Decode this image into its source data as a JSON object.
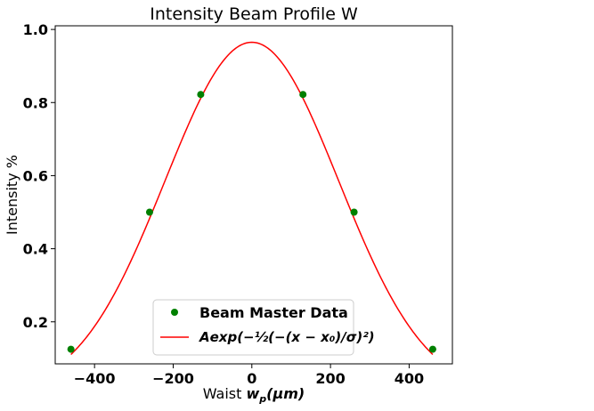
{
  "chart_data": {
    "type": "line",
    "title": "Intensity Beam Profile W",
    "xlabel_prefix": "Waist ",
    "xlabel_math": "w",
    "xlabel_sub": "p",
    "xlabel_unit": "(μm)",
    "ylabel": "Intensity %",
    "xlim": [
      -500,
      510
    ],
    "ylim": [
      0.085,
      1.01
    ],
    "xticks": [
      -400,
      -200,
      0,
      200,
      400
    ],
    "xtick_labels": [
      "−400",
      "−200",
      "0",
      "200",
      "400"
    ],
    "yticks": [
      0.2,
      0.4,
      0.6,
      0.8,
      1.0
    ],
    "ytick_labels": [
      "0.2",
      "0.4",
      "0.6",
      "0.8",
      "1.0"
    ],
    "grid": false,
    "legend_position": "lower center",
    "series": [
      {
        "name": "Beam Master Data",
        "kind": "scatter",
        "color": "#008000",
        "x": [
          -460,
          -260,
          -130,
          130,
          260,
          460
        ],
        "y": [
          0.125,
          0.5,
          0.822,
          0.822,
          0.5,
          0.125
        ]
      },
      {
        "name": "Aexp(−½(−(x − x₀)/σ)²)",
        "kind": "line",
        "color": "#ff0000",
        "model": "gaussian",
        "amplitude": 0.965,
        "x0": 0,
        "sigma": 221,
        "x_range": [
          -460,
          460
        ]
      }
    ]
  }
}
